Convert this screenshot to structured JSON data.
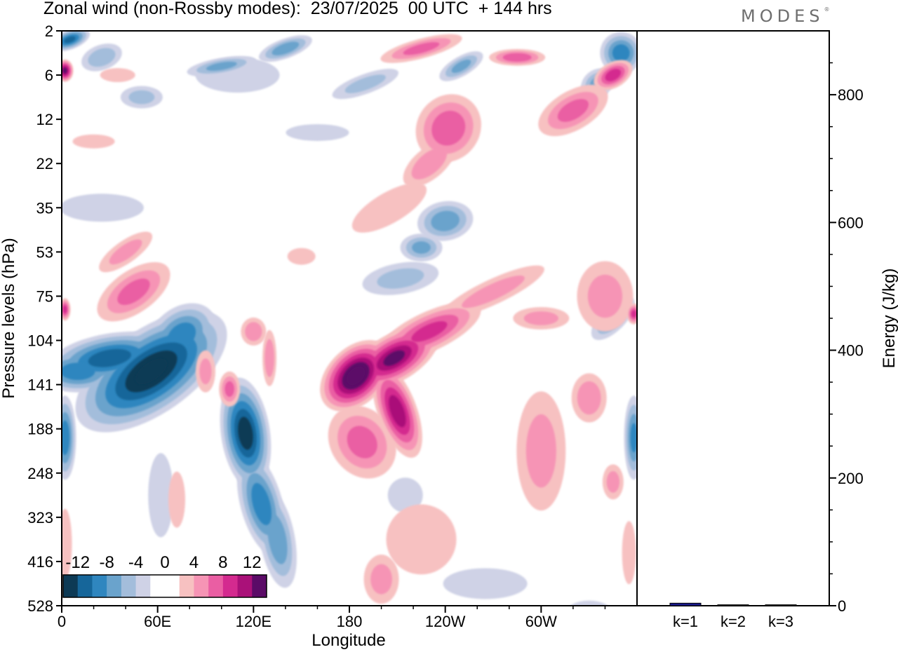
{
  "chart_data": [
    {
      "type": "heatmap",
      "title": "Zonal wind (non-Rossby modes):  23/07/2025  00 UTC  + 144 hrs",
      "xlabel": "Longitude",
      "ylabel": "Pressure levels (hPa)",
      "x_ticks": [
        "0",
        "60E",
        "120E",
        "180",
        "120W",
        "60W"
      ],
      "y_ticks": [
        "2",
        "6",
        "12",
        "22",
        "35",
        "53",
        "75",
        "104",
        "141",
        "188",
        "248",
        "323",
        "416",
        "528"
      ],
      "colorbar": {
        "labels": [
          "-12",
          "-8",
          "-4",
          "0",
          "4",
          "8",
          "12"
        ],
        "levels": [
          -14,
          -12,
          -10,
          -8,
          -6,
          -4,
          -2,
          2,
          4,
          6,
          8,
          10,
          12,
          14
        ],
        "colors": [
          "#0d3a55",
          "#16669a",
          "#2f86bf",
          "#6aa3cc",
          "#a3bddb",
          "#cfd2e6",
          "#ffffff",
          "#ffffff",
          "#f7c1c1",
          "#f694b5",
          "#ea5ea3",
          "#d42a8f",
          "#aa1179",
          "#5b0b67"
        ]
      },
      "features": [
        {
          "name": "blue-core-60E",
          "lon": 56,
          "level_index": 7.7,
          "value": -14
        },
        {
          "name": "blue-band-120E",
          "lon": 115,
          "level_index": 9.1,
          "value": -13
        },
        {
          "name": "blue-left-edge",
          "lon": 2,
          "level_index": 9.2,
          "value": -9
        },
        {
          "name": "blue-right-edge",
          "lon": 358,
          "level_index": 9.2,
          "value": -8
        },
        {
          "name": "blue-top-left",
          "lon": 5,
          "level_index": 0.2,
          "value": -10
        },
        {
          "name": "blue-top-right",
          "lon": 350,
          "level_index": 0.5,
          "value": -9
        },
        {
          "name": "pink-core-185",
          "lon": 184,
          "level_index": 7.8,
          "value": 15
        },
        {
          "name": "pink-core-200",
          "lon": 208,
          "level_index": 7.4,
          "value": 12
        },
        {
          "name": "pink-band-210",
          "lon": 210,
          "level_index": 8.6,
          "value": 11
        },
        {
          "name": "pink-upper-240",
          "lon": 242,
          "level_index": 2.2,
          "value": 7
        },
        {
          "name": "pink-top-right",
          "lon": 345,
          "level_index": 1.0,
          "value": 9
        },
        {
          "name": "pink-mid-right",
          "lon": 340,
          "level_index": 6.0,
          "value": 4
        }
      ]
    },
    {
      "type": "bar",
      "ylabel": "Energy (J/kg)",
      "categories": [
        "k=1",
        "k=2",
        "k=3"
      ],
      "values": [
        4,
        1.5,
        1.5
      ],
      "ylim": [
        0,
        900
      ],
      "y_ticks": [
        0,
        200,
        400,
        600,
        800
      ]
    }
  ],
  "logo_text": "MODES",
  "logo_mark": "®"
}
